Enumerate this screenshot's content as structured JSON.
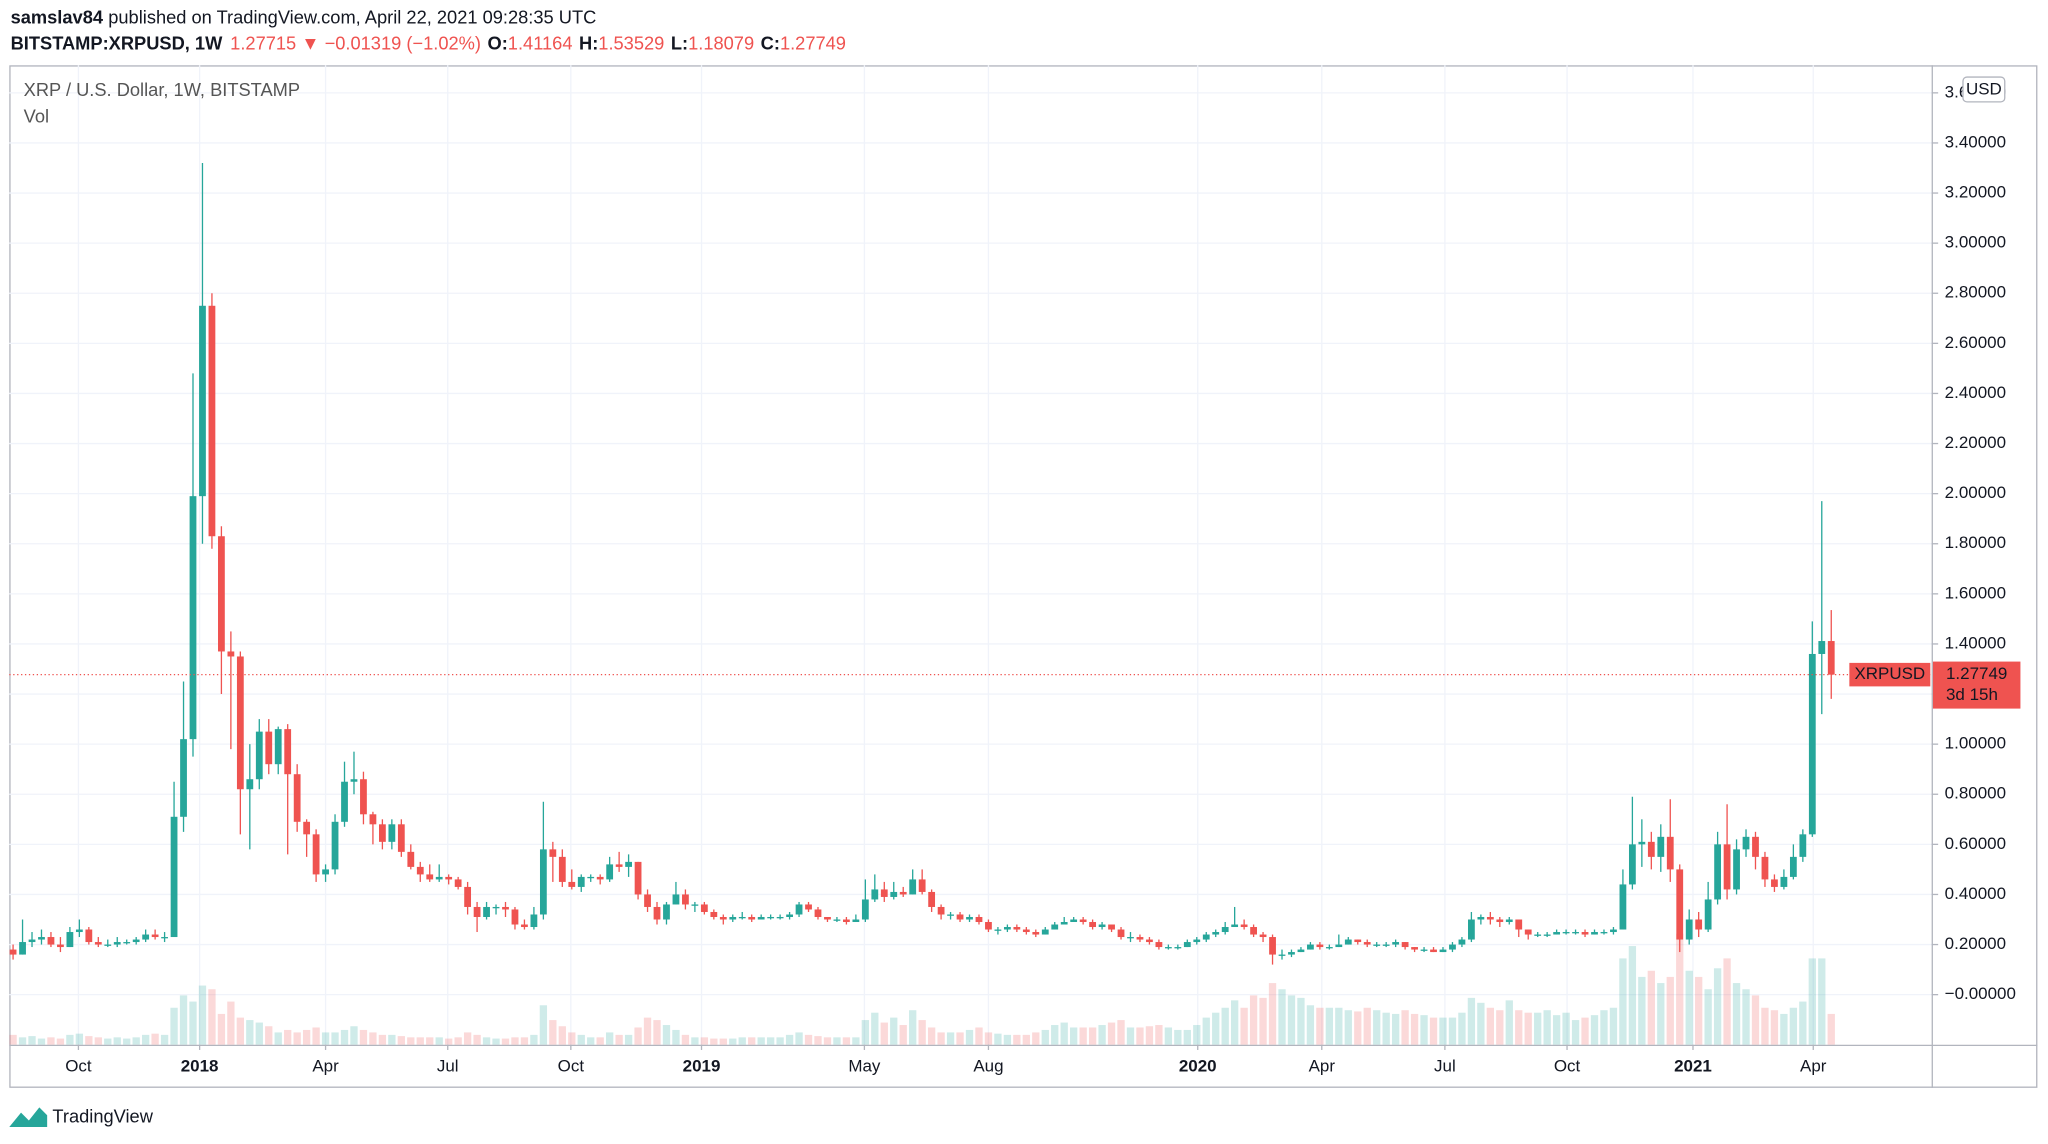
{
  "header": {
    "author": "samslav84",
    "published": "published on TradingView.com, April 22, 2021 09:28:35 UTC",
    "symbol": "BITSTAMP:XRPUSD, 1W",
    "last": "1.27715",
    "change": "▼ −0.01319 (−1.02%)",
    "ohlc": [
      {
        "key": "O:",
        "value": "1.41164"
      },
      {
        "key": "H:",
        "value": "1.53529"
      },
      {
        "key": "L:",
        "value": "1.18079"
      },
      {
        "key": "C:",
        "value": "1.27749"
      }
    ]
  },
  "chart_data": {
    "type": "candlestick",
    "legend": "XRP / U.S. Dollar, 1W, BITSTAMP",
    "volume_label": "Vol",
    "currency": "USD",
    "up_color": "#26a69a",
    "down_color": "#ef5350",
    "grid": true,
    "price_line": {
      "value": 1.27749,
      "symbol": "XRPUSD",
      "countdown": "3d 15h"
    },
    "xlim": [
      -0.4,
      202.6
    ],
    "xticks": [
      {
        "value": 6.9,
        "label": "Oct"
      },
      {
        "value": 19.7,
        "label": "2018"
      },
      {
        "value": 33.0,
        "label": "Apr"
      },
      {
        "value": 45.9,
        "label": "Jul"
      },
      {
        "value": 58.9,
        "label": "Oct"
      },
      {
        "value": 72.7,
        "label": "2019"
      },
      {
        "value": 89.9,
        "label": "May"
      },
      {
        "value": 103.0,
        "label": "Aug"
      },
      {
        "value": 125.1,
        "label": "2020"
      },
      {
        "value": 138.2,
        "label": "Apr"
      },
      {
        "value": 151.2,
        "label": "Jul"
      },
      {
        "value": 164.1,
        "label": "Oct"
      },
      {
        "value": 177.4,
        "label": "2021"
      },
      {
        "value": 190.1,
        "label": "Apr"
      }
    ],
    "ylim": [
      -0.2,
      3.71
    ],
    "yticks": [
      {
        "value": 0,
        "label": "−0.00000"
      },
      {
        "value": 0.2,
        "label": "0.20000"
      },
      {
        "value": 0.4,
        "label": "0.40000"
      },
      {
        "value": 0.6,
        "label": "0.60000"
      },
      {
        "value": 0.8,
        "label": "0.80000"
      },
      {
        "value": 1.0,
        "label": "1.00000"
      },
      {
        "value": 1.2,
        "label": "1.20000"
      },
      {
        "value": 1.4,
        "label": "1.40000"
      },
      {
        "value": 1.6,
        "label": "1.60000"
      },
      {
        "value": 1.8,
        "label": "1.80000"
      },
      {
        "value": 2.0,
        "label": "2.00000"
      },
      {
        "value": 2.2,
        "label": "2.20000"
      },
      {
        "value": 2.4,
        "label": "2.40000"
      },
      {
        "value": 2.6,
        "label": "2.60000"
      },
      {
        "value": 2.8,
        "label": "2.80000"
      },
      {
        "value": 3.0,
        "label": "3.00000"
      },
      {
        "value": 3.2,
        "label": "3.20000"
      },
      {
        "value": 3.4,
        "label": "3.40000"
      },
      {
        "value": 3.6,
        "label": "3.60000"
      }
    ],
    "open": [
      0.18,
      0.16,
      0.21,
      0.22,
      0.23,
      0.2,
      0.19,
      0.25,
      0.26,
      0.21,
      0.2,
      0.2,
      0.21,
      0.21,
      0.22,
      0.24,
      0.23,
      0.23,
      0.71,
      1.02,
      1.99,
      2.75,
      1.83,
      1.37,
      1.35,
      0.82,
      0.86,
      1.05,
      0.92,
      1.06,
      0.88,
      0.69,
      0.64,
      0.48,
      0.5,
      0.69,
      0.85,
      0.86,
      0.72,
      0.68,
      0.61,
      0.68,
      0.57,
      0.51,
      0.48,
      0.46,
      0.47,
      0.46,
      0.43,
      0.35,
      0.31,
      0.35,
      0.35,
      0.34,
      0.28,
      0.27,
      0.32,
      0.58,
      0.55,
      0.45,
      0.43,
      0.47,
      0.47,
      0.46,
      0.52,
      0.51,
      0.53,
      0.4,
      0.35,
      0.3,
      0.36,
      0.4,
      0.36,
      0.36,
      0.33,
      0.31,
      0.3,
      0.31,
      0.31,
      0.3,
      0.31,
      0.31,
      0.31,
      0.32,
      0.36,
      0.34,
      0.31,
      0.3,
      0.3,
      0.29,
      0.3,
      0.38,
      0.42,
      0.39,
      0.41,
      0.4,
      0.46,
      0.41,
      0.35,
      0.32,
      0.32,
      0.3,
      0.31,
      0.29,
      0.26,
      0.26,
      0.27,
      0.26,
      0.25,
      0.24,
      0.26,
      0.28,
      0.29,
      0.3,
      0.29,
      0.27,
      0.28,
      0.26,
      0.23,
      0.23,
      0.22,
      0.21,
      0.19,
      0.19,
      0.19,
      0.21,
      0.22,
      0.24,
      0.25,
      0.27,
      0.28,
      0.27,
      0.24,
      0.23,
      0.16,
      0.16,
      0.17,
      0.18,
      0.2,
      0.19,
      0.19,
      0.2,
      0.22,
      0.21,
      0.2,
      0.2,
      0.2,
      0.21,
      0.19,
      0.18,
      0.18,
      0.17,
      0.18,
      0.2,
      0.22,
      0.3,
      0.31,
      0.3,
      0.29,
      0.3,
      0.26,
      0.24,
      0.24,
      0.24,
      0.25,
      0.25,
      0.25,
      0.24,
      0.25,
      0.25,
      0.26,
      0.44,
      0.6,
      0.61,
      0.55,
      0.63,
      0.5,
      0.22,
      0.3,
      0.26,
      0.38,
      0.6,
      0.42,
      0.58,
      0.63,
      0.55,
      0.46,
      0.43,
      0.47,
      0.55,
      0.64,
      1.36,
      1.41164
    ],
    "high": [
      0.2,
      0.3,
      0.25,
      0.26,
      0.25,
      0.23,
      0.27,
      0.3,
      0.27,
      0.23,
      0.22,
      0.23,
      0.22,
      0.23,
      0.26,
      0.26,
      0.25,
      0.85,
      1.25,
      2.48,
      3.32,
      2.8,
      1.87,
      1.45,
      1.37,
      1.0,
      1.1,
      1.1,
      1.07,
      1.08,
      0.92,
      0.7,
      0.66,
      0.52,
      0.72,
      0.93,
      0.97,
      0.89,
      0.73,
      0.7,
      0.7,
      0.7,
      0.6,
      0.53,
      0.52,
      0.52,
      0.48,
      0.47,
      0.45,
      0.37,
      0.37,
      0.36,
      0.37,
      0.35,
      0.3,
      0.35,
      0.77,
      0.61,
      0.58,
      0.5,
      0.48,
      0.48,
      0.48,
      0.55,
      0.57,
      0.56,
      0.53,
      0.42,
      0.37,
      0.37,
      0.45,
      0.42,
      0.37,
      0.37,
      0.34,
      0.32,
      0.32,
      0.33,
      0.32,
      0.32,
      0.32,
      0.32,
      0.33,
      0.37,
      0.37,
      0.35,
      0.31,
      0.31,
      0.31,
      0.32,
      0.46,
      0.48,
      0.45,
      0.45,
      0.43,
      0.5,
      0.5,
      0.42,
      0.36,
      0.33,
      0.33,
      0.32,
      0.32,
      0.3,
      0.27,
      0.28,
      0.28,
      0.27,
      0.26,
      0.27,
      0.29,
      0.31,
      0.31,
      0.31,
      0.3,
      0.29,
      0.28,
      0.27,
      0.25,
      0.24,
      0.23,
      0.22,
      0.2,
      0.2,
      0.22,
      0.23,
      0.25,
      0.26,
      0.29,
      0.35,
      0.3,
      0.28,
      0.25,
      0.24,
      0.18,
      0.18,
      0.19,
      0.21,
      0.21,
      0.2,
      0.24,
      0.23,
      0.22,
      0.22,
      0.21,
      0.21,
      0.22,
      0.21,
      0.19,
      0.19,
      0.19,
      0.19,
      0.21,
      0.23,
      0.33,
      0.32,
      0.33,
      0.31,
      0.31,
      0.3,
      0.26,
      0.25,
      0.25,
      0.26,
      0.26,
      0.26,
      0.26,
      0.26,
      0.26,
      0.27,
      0.5,
      0.79,
      0.7,
      0.65,
      0.68,
      0.78,
      0.52,
      0.34,
      0.33,
      0.45,
      0.65,
      0.76,
      0.62,
      0.66,
      0.65,
      0.57,
      0.48,
      0.5,
      0.6,
      0.66,
      1.49,
      1.97,
      1.53529
    ],
    "low": [
      0.14,
      0.16,
      0.19,
      0.2,
      0.19,
      0.17,
      0.19,
      0.23,
      0.2,
      0.19,
      0.19,
      0.19,
      0.2,
      0.2,
      0.21,
      0.22,
      0.21,
      0.23,
      0.65,
      0.95,
      1.8,
      1.78,
      1.2,
      0.98,
      0.64,
      0.58,
      0.82,
      0.88,
      0.88,
      0.56,
      0.65,
      0.55,
      0.45,
      0.45,
      0.48,
      0.67,
      0.8,
      0.68,
      0.6,
      0.58,
      0.58,
      0.55,
      0.5,
      0.45,
      0.45,
      0.45,
      0.44,
      0.42,
      0.32,
      0.25,
      0.3,
      0.32,
      0.31,
      0.26,
      0.26,
      0.26,
      0.3,
      0.45,
      0.43,
      0.42,
      0.41,
      0.45,
      0.44,
      0.45,
      0.49,
      0.47,
      0.38,
      0.33,
      0.28,
      0.28,
      0.36,
      0.34,
      0.33,
      0.32,
      0.3,
      0.28,
      0.29,
      0.3,
      0.29,
      0.3,
      0.3,
      0.3,
      0.3,
      0.31,
      0.33,
      0.3,
      0.29,
      0.29,
      0.28,
      0.29,
      0.29,
      0.37,
      0.37,
      0.38,
      0.39,
      0.4,
      0.4,
      0.33,
      0.3,
      0.3,
      0.29,
      0.29,
      0.28,
      0.25,
      0.24,
      0.25,
      0.25,
      0.24,
      0.23,
      0.24,
      0.26,
      0.28,
      0.29,
      0.28,
      0.26,
      0.26,
      0.25,
      0.22,
      0.21,
      0.21,
      0.2,
      0.18,
      0.18,
      0.18,
      0.19,
      0.2,
      0.21,
      0.23,
      0.24,
      0.27,
      0.26,
      0.23,
      0.21,
      0.12,
      0.14,
      0.15,
      0.17,
      0.18,
      0.18,
      0.18,
      0.19,
      0.2,
      0.2,
      0.19,
      0.19,
      0.19,
      0.19,
      0.18,
      0.17,
      0.17,
      0.17,
      0.17,
      0.17,
      0.19,
      0.21,
      0.28,
      0.28,
      0.27,
      0.28,
      0.23,
      0.22,
      0.23,
      0.23,
      0.24,
      0.24,
      0.24,
      0.23,
      0.24,
      0.24,
      0.24,
      0.26,
      0.42,
      0.51,
      0.5,
      0.49,
      0.45,
      0.17,
      0.2,
      0.23,
      0.25,
      0.36,
      0.38,
      0.4,
      0.55,
      0.5,
      0.43,
      0.41,
      0.42,
      0.46,
      0.53,
      0.63,
      1.12,
      1.18079
    ],
    "close": [
      0.16,
      0.21,
      0.22,
      0.23,
      0.2,
      0.19,
      0.25,
      0.26,
      0.21,
      0.2,
      0.2,
      0.21,
      0.21,
      0.22,
      0.24,
      0.23,
      0.23,
      0.71,
      1.02,
      1.99,
      2.75,
      1.83,
      1.37,
      1.35,
      0.82,
      0.86,
      1.05,
      0.92,
      1.06,
      0.88,
      0.69,
      0.64,
      0.48,
      0.5,
      0.69,
      0.85,
      0.86,
      0.72,
      0.68,
      0.61,
      0.68,
      0.57,
      0.51,
      0.48,
      0.46,
      0.47,
      0.46,
      0.43,
      0.35,
      0.31,
      0.35,
      0.35,
      0.34,
      0.28,
      0.27,
      0.32,
      0.58,
      0.55,
      0.45,
      0.43,
      0.47,
      0.47,
      0.46,
      0.52,
      0.51,
      0.53,
      0.4,
      0.35,
      0.3,
      0.36,
      0.4,
      0.36,
      0.36,
      0.33,
      0.31,
      0.3,
      0.31,
      0.31,
      0.3,
      0.31,
      0.31,
      0.31,
      0.32,
      0.36,
      0.34,
      0.31,
      0.3,
      0.3,
      0.29,
      0.3,
      0.38,
      0.42,
      0.39,
      0.41,
      0.4,
      0.46,
      0.41,
      0.35,
      0.32,
      0.32,
      0.3,
      0.31,
      0.29,
      0.26,
      0.26,
      0.27,
      0.26,
      0.25,
      0.24,
      0.26,
      0.28,
      0.29,
      0.3,
      0.29,
      0.27,
      0.28,
      0.26,
      0.23,
      0.23,
      0.22,
      0.21,
      0.19,
      0.19,
      0.19,
      0.21,
      0.22,
      0.24,
      0.25,
      0.27,
      0.28,
      0.27,
      0.24,
      0.23,
      0.16,
      0.16,
      0.17,
      0.18,
      0.2,
      0.19,
      0.19,
      0.2,
      0.22,
      0.21,
      0.2,
      0.2,
      0.2,
      0.21,
      0.19,
      0.18,
      0.18,
      0.17,
      0.18,
      0.2,
      0.22,
      0.3,
      0.31,
      0.3,
      0.29,
      0.3,
      0.26,
      0.24,
      0.24,
      0.24,
      0.25,
      0.25,
      0.25,
      0.24,
      0.25,
      0.25,
      0.26,
      0.44,
      0.6,
      0.61,
      0.55,
      0.63,
      0.5,
      0.22,
      0.3,
      0.26,
      0.38,
      0.6,
      0.42,
      0.58,
      0.63,
      0.55,
      0.46,
      0.43,
      0.47,
      0.55,
      0.64,
      1.36,
      1.41164,
      1.27749
    ],
    "volume": [
      8,
      6,
      7,
      5,
      6,
      5,
      8,
      9,
      7,
      6,
      5,
      6,
      5,
      6,
      8,
      9,
      8,
      30,
      40,
      35,
      48,
      45,
      25,
      35,
      22,
      20,
      18,
      15,
      10,
      12,
      10,
      12,
      14,
      10,
      10,
      12,
      15,
      12,
      10,
      8,
      8,
      7,
      6,
      6,
      6,
      6,
      5,
      6,
      10,
      8,
      6,
      5,
      5,
      6,
      6,
      8,
      32,
      20,
      15,
      10,
      8,
      6,
      6,
      10,
      8,
      8,
      14,
      22,
      20,
      16,
      12,
      8,
      6,
      6,
      5,
      5,
      5,
      6,
      6,
      6,
      6,
      6,
      8,
      10,
      8,
      7,
      6,
      6,
      6,
      6,
      20,
      26,
      18,
      22,
      16,
      28,
      20,
      14,
      10,
      10,
      10,
      12,
      14,
      10,
      9,
      8,
      8,
      8,
      10,
      12,
      16,
      18,
      14,
      14,
      14,
      16,
      18,
      20,
      14,
      14,
      15,
      16,
      14,
      12,
      12,
      16,
      22,
      26,
      30,
      36,
      30,
      40,
      38,
      50,
      45,
      40,
      38,
      32,
      30,
      30,
      30,
      28,
      27,
      30,
      28,
      26,
      25,
      28,
      25,
      24,
      22,
      22,
      22,
      26,
      38,
      34,
      30,
      28,
      36,
      28,
      26,
      26,
      28,
      24,
      26,
      20,
      22,
      24,
      28,
      30,
      70,
      80,
      55,
      60,
      50,
      55,
      90,
      60,
      55,
      45,
      62,
      70,
      50,
      45,
      40,
      30,
      28,
      25,
      30,
      35,
      70,
      70,
      25
    ]
  },
  "footer": {
    "brand": "TradingView"
  }
}
